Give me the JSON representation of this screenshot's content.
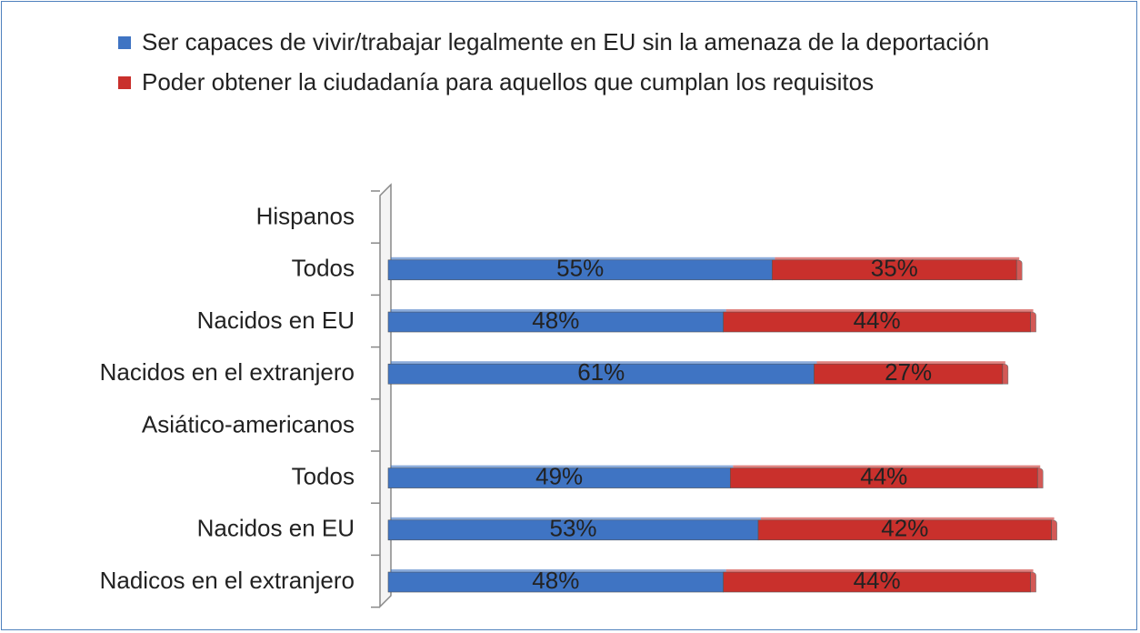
{
  "chart_data": {
    "type": "stacked-bar-horizontal",
    "categories": [
      "Hispanos",
      "Todos",
      "Nacidos en EU",
      "Nacidos en el extranjero",
      "Asiático-americanos",
      "Todos",
      "Nacidos en EU",
      "Nadicos en el extranjero"
    ],
    "series": [
      {
        "name": "Ser capaces de vivir/trabajar legalmente en EU sin la amenaza de la deportación",
        "color": "#3f74c3",
        "values": [
          null,
          55,
          48,
          61,
          null,
          49,
          53,
          48
        ],
        "value_labels": [
          null,
          "55%",
          "48%",
          "61%",
          null,
          "49%",
          "53%",
          "48%"
        ]
      },
      {
        "name": "Poder obtener la ciudadanía para aquellos que cumplan los requisitos",
        "color": "#c9302c",
        "values": [
          null,
          35,
          44,
          27,
          null,
          44,
          42,
          44
        ],
        "value_labels": [
          null,
          "35%",
          "44%",
          "27%",
          null,
          "44%",
          "42%",
          "44%"
        ]
      }
    ]
  }
}
